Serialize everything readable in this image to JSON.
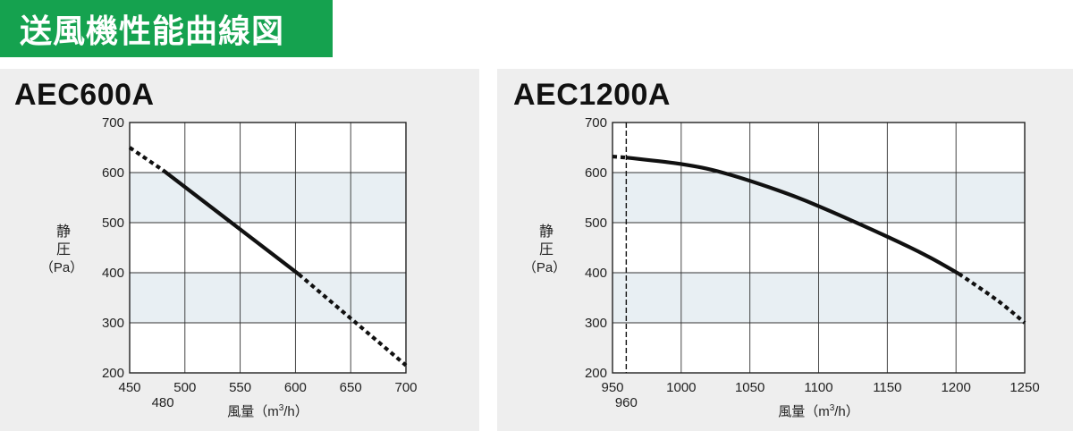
{
  "page_title": "送風機性能曲線図",
  "chart_data": [
    {
      "type": "line",
      "title": "AEC600A",
      "xlabel": "風量（m3/h）",
      "xlabel_main": "風量（m",
      "xlabel_sup": "3",
      "xlabel_tail": "/h）",
      "ylabel": [
        "静",
        "圧",
        "（Pa）"
      ],
      "xlim": [
        450,
        700
      ],
      "ylim": [
        200,
        700
      ],
      "xticks": [
        450,
        500,
        550,
        600,
        650,
        700
      ],
      "yticks": [
        200,
        300,
        400,
        500,
        600,
        700
      ],
      "extra_xtick_label": "480",
      "extra_xtick_value": 480,
      "shaded_bands": [
        [
          300,
          400
        ],
        [
          500,
          600
        ]
      ],
      "grid": true,
      "series": [
        {
          "style": "dashed",
          "points": [
            [
              450,
              650
            ],
            [
              480,
              605
            ]
          ]
        },
        {
          "style": "solid",
          "points": [
            [
              480,
              605
            ],
            [
              603,
              397
            ]
          ]
        },
        {
          "style": "dashed",
          "points": [
            [
              603,
              397
            ],
            [
              700,
              215
            ]
          ]
        }
      ]
    },
    {
      "type": "line",
      "title": "AEC1200A",
      "xlabel": "風量（m3/h）",
      "xlabel_main": "風量（m",
      "xlabel_sup": "3",
      "xlabel_tail": "/h）",
      "ylabel": [
        "静",
        "圧",
        "（Pa）"
      ],
      "xlim": [
        950,
        1250
      ],
      "ylim": [
        200,
        700
      ],
      "xticks": [
        950,
        1000,
        1050,
        1100,
        1150,
        1200,
        1250
      ],
      "yticks": [
        200,
        300,
        400,
        500,
        600,
        700
      ],
      "extra_xtick_label": "960",
      "extra_xtick_value": 960,
      "vline_x": 960,
      "shaded_bands": [
        [
          300,
          400
        ],
        [
          500,
          600
        ]
      ],
      "grid": true,
      "series": [
        {
          "style": "dashed",
          "points": [
            [
              950,
              632
            ],
            [
              960,
              630
            ]
          ]
        },
        {
          "style": "solid",
          "points": [
            [
              960,
              630
            ],
            [
              1000,
              617
            ],
            [
              1030,
              600
            ],
            [
              1070,
              565
            ],
            [
              1100,
              533
            ],
            [
              1150,
              472
            ],
            [
              1180,
              432
            ],
            [
              1202,
              398
            ]
          ]
        },
        {
          "style": "dashed",
          "points": [
            [
              1202,
              398
            ],
            [
              1230,
              345
            ],
            [
              1250,
              300
            ]
          ]
        }
      ]
    }
  ]
}
